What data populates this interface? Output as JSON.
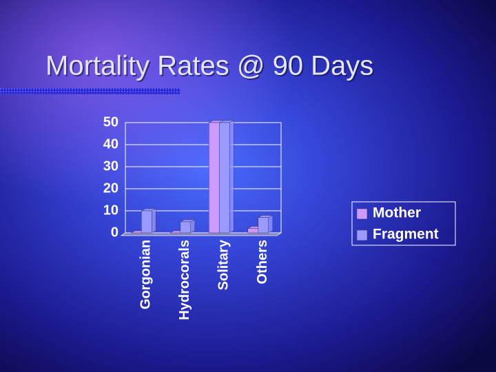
{
  "chart_data": {
    "type": "bar",
    "title": "Mortality Rates @ 90 Days",
    "categories": [
      "Gorgonian",
      "Hydrocorals",
      "Solitary",
      "Others"
    ],
    "series": [
      {
        "name": "Mother",
        "color": "#cc99ff",
        "values": [
          0,
          0,
          50,
          2
        ]
      },
      {
        "name": "Fragment",
        "color": "#9999ff",
        "values": [
          10,
          5,
          50,
          7
        ]
      }
    ],
    "ylim": [
      0,
      50
    ],
    "yticks": [
      0,
      10,
      20,
      30,
      40,
      50
    ],
    "grid": true,
    "legend": "right"
  }
}
